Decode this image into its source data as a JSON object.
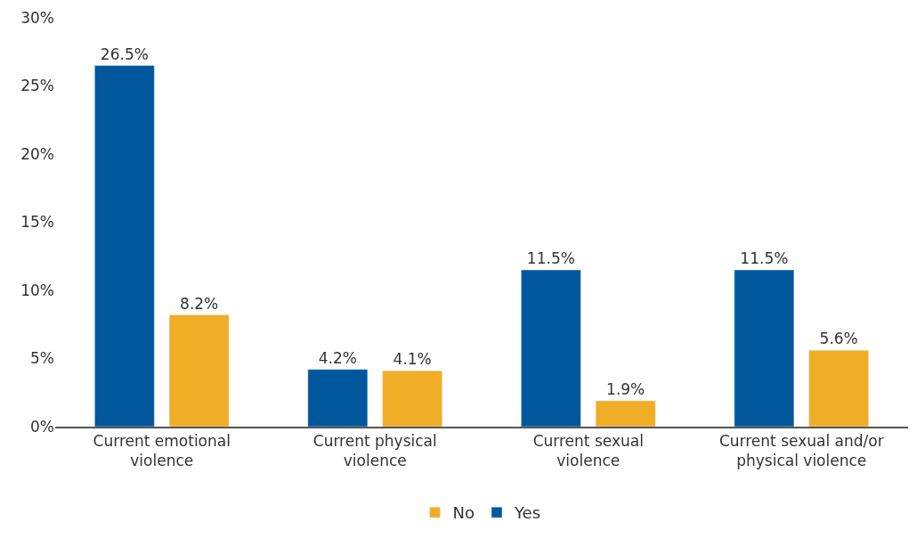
{
  "chart_data": {
    "type": "bar",
    "categories": [
      "Current emotional violence",
      "Current physical violence",
      "Current sexual violence",
      "Current sexual and/or physical violence"
    ],
    "series": [
      {
        "name": "Yes",
        "color": "#00579c",
        "values": [
          26.5,
          4.2,
          11.5,
          11.5
        ],
        "value_labels": [
          "26.5%",
          "4.2%",
          "11.5%",
          "11.5%"
        ]
      },
      {
        "name": "No",
        "color": "#f0ae26",
        "values": [
          8.2,
          4.1,
          1.9,
          5.6
        ],
        "value_labels": [
          "8.2%",
          "4.1%",
          "1.9%",
          "5.6%"
        ]
      }
    ],
    "ylim": [
      0,
      30
    ],
    "yticks": [
      {
        "value": 0,
        "label": "0%"
      },
      {
        "value": 5,
        "label": "5%"
      },
      {
        "value": 10,
        "label": "10%"
      },
      {
        "value": 15,
        "label": "15%"
      },
      {
        "value": 20,
        "label": "20%"
      },
      {
        "value": 25,
        "label": "25%"
      },
      {
        "value": 30,
        "label": "30%"
      }
    ],
    "legend": "bottom"
  }
}
